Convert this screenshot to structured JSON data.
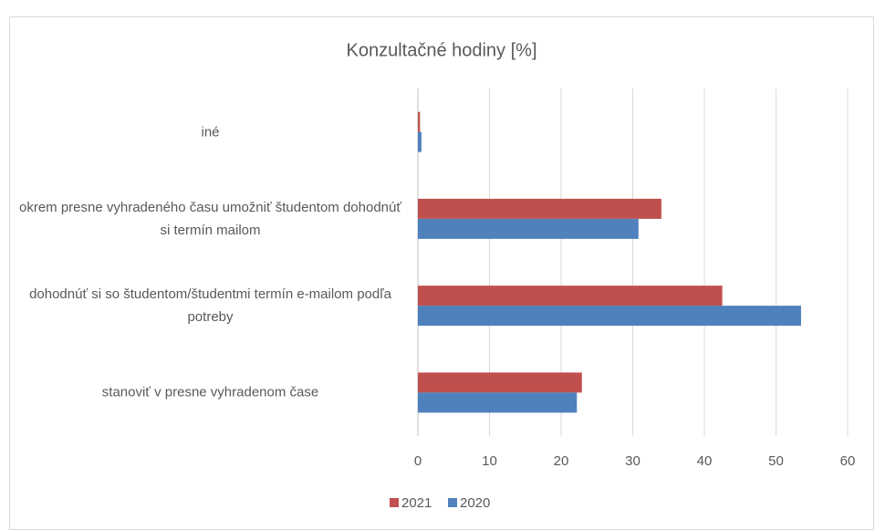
{
  "chart_data": {
    "type": "hbar",
    "title": "Konzultačné hodiny [%]",
    "categories": [
      "iné",
      "okrem presne vyhradeného času umožniť študentom dohodnúť si termín mailom",
      "dohodnúť si so študentom/študentmi termín e-mailom podľa potreby",
      "stanoviť v presne vyhradenom čase"
    ],
    "series": [
      {
        "name": "2021",
        "color": "#c0504d",
        "values": [
          0.3,
          34.0,
          42.5,
          22.9
        ]
      },
      {
        "name": "2020",
        "color": "#4f81bd",
        "values": [
          0.5,
          30.8,
          53.5,
          22.2
        ]
      }
    ],
    "xlim": [
      0,
      60
    ],
    "xticks": [
      0,
      10,
      20,
      30,
      40,
      50,
      60
    ],
    "grid": true,
    "legend": "bottom"
  }
}
